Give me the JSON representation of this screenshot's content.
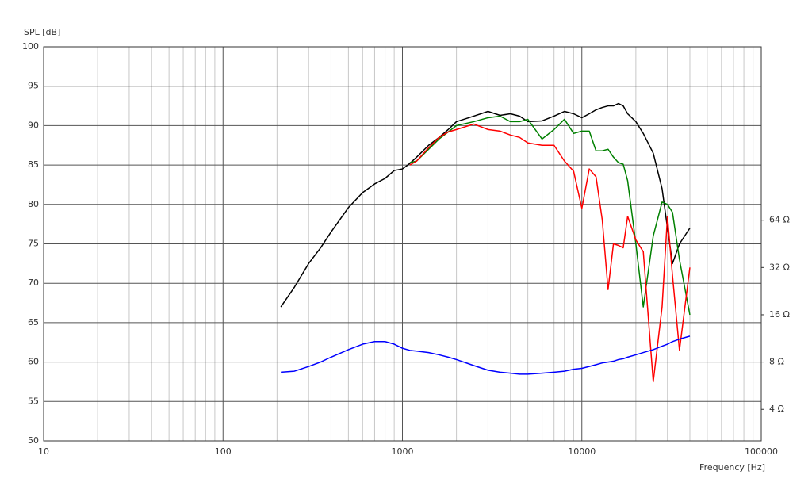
{
  "chart_data": {
    "type": "line",
    "y_label": "SPL [dB]",
    "x_label": "Frequency [Hz]",
    "xscale": "log",
    "y2scale": "log",
    "grid": true,
    "x": [
      210,
      250,
      300,
      350,
      400,
      500,
      600,
      700,
      800,
      900,
      1000,
      1100,
      1200,
      1400,
      1600,
      1800,
      2000,
      2500,
      3000,
      3500,
      4000,
      4500,
      5000,
      6000,
      7000,
      8000,
      9000,
      10000,
      11000,
      12000,
      13000,
      14000,
      15000,
      16000,
      17000,
      18000,
      20000,
      22000,
      25000,
      28000,
      30000,
      32000,
      35000,
      40000
    ],
    "xlim": [
      10,
      100000
    ],
    "xticks": [
      10,
      100,
      1000,
      10000,
      100000
    ],
    "ylim": [
      50,
      100
    ],
    "yticks": [
      50,
      55,
      60,
      65,
      70,
      75,
      80,
      85,
      90,
      95,
      100
    ],
    "y2lim": [
      2.52,
      812.7
    ],
    "y2ticks": [
      {
        "value": 4,
        "label": "4 Ω"
      },
      {
        "value": 8,
        "label": "8 Ω"
      },
      {
        "value": 16,
        "label": "16 Ω"
      },
      {
        "value": 32,
        "label": "32 Ω"
      },
      {
        "value": 64,
        "label": "64 Ω"
      }
    ],
    "series": [
      {
        "color": "#000000",
        "values": [
          67,
          69.5,
          72.5,
          74.5,
          76.5,
          79.6,
          81.5,
          82.6,
          83.3,
          84.3,
          84.5,
          85.2,
          86,
          87.5,
          88.5,
          89.5,
          90.5,
          91.2,
          91.8,
          91.3,
          91.5,
          91.2,
          90.5,
          90.6,
          91.2,
          91.8,
          91.5,
          91,
          91.5,
          92,
          92.3,
          92.5,
          92.5,
          92.8,
          92.5,
          91.5,
          90.5,
          89,
          86.5,
          82,
          77,
          72.5,
          75,
          77
        ]
      },
      {
        "color": "#008000",
        "values": [
          null,
          null,
          null,
          null,
          null,
          null,
          null,
          null,
          null,
          null,
          null,
          85.3,
          85.5,
          87,
          88.3,
          89.2,
          90,
          90.5,
          91,
          91.2,
          90.5,
          90.5,
          90.8,
          88.3,
          89.5,
          90.8,
          89,
          89.3,
          89.3,
          86.8,
          86.8,
          87,
          86,
          85.3,
          85.1,
          83,
          75,
          67,
          76,
          80.3,
          80,
          79,
          73,
          66
        ]
      },
      {
        "color": "#ff0000",
        "values": [
          null,
          null,
          null,
          null,
          null,
          null,
          null,
          null,
          null,
          null,
          null,
          85,
          85.5,
          87.2,
          88.5,
          89.2,
          89.5,
          90.2,
          89.5,
          89.3,
          88.8,
          88.5,
          87.8,
          87.5,
          87.5,
          85.5,
          84.2,
          79.5,
          84.5,
          83.5,
          78,
          69.2,
          75,
          74.8,
          74.5,
          78.5,
          75.5,
          74,
          57.5,
          67,
          78.5,
          71,
          61.5,
          72
        ]
      },
      {
        "color": "#0000ff",
        "axis": "y2",
        "values": [
          6.9,
          7.0,
          7.5,
          8,
          8.6,
          9.6,
          10.4,
          10.8,
          10.8,
          10.4,
          9.8,
          9.5,
          9.4,
          9.2,
          8.9,
          8.6,
          8.3,
          7.6,
          7.1,
          6.9,
          6.8,
          6.7,
          6.7,
          6.8,
          6.9,
          7.0,
          7.2,
          7.3,
          7.5,
          7.7,
          7.9,
          8.0,
          8.1,
          8.3,
          8.4,
          8.6,
          8.9,
          9.2,
          9.6,
          10.1,
          10.4,
          10.8,
          11.2,
          11.7
        ]
      }
    ]
  }
}
